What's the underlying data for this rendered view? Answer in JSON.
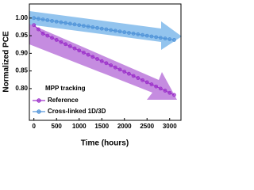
{
  "chart_data": {
    "type": "line",
    "x_label": "Time (hours)",
    "y_label": "Normalized PCE",
    "x": [
      0,
      100,
      200,
      300,
      400,
      500,
      600,
      700,
      800,
      900,
      1000,
      1100,
      1200,
      1300,
      1400,
      1500,
      1600,
      1700,
      1800,
      1900,
      2000,
      2100,
      2200,
      2300,
      2400,
      2500,
      2600,
      2700,
      2800,
      2900,
      3000,
      3100
    ],
    "series": [
      {
        "name": "Reference",
        "color": "#9b2fc9",
        "values": [
          0.98,
          0.968,
          0.956,
          0.95,
          0.944,
          0.938,
          0.932,
          0.926,
          0.92,
          0.914,
          0.908,
          0.902,
          0.896,
          0.89,
          0.884,
          0.878,
          0.872,
          0.866,
          0.86,
          0.854,
          0.848,
          0.842,
          0.836,
          0.83,
          0.824,
          0.818,
          0.812,
          0.806,
          0.8,
          0.794,
          0.788,
          0.782
        ]
      },
      {
        "name": "Cross-linked 1D/3D",
        "color": "#4f93d8",
        "values": [
          1.0,
          0.998,
          0.996,
          0.994,
          0.992,
          0.99,
          0.988,
          0.986,
          0.984,
          0.982,
          0.98,
          0.978,
          0.976,
          0.974,
          0.972,
          0.97,
          0.968,
          0.966,
          0.964,
          0.962,
          0.96,
          0.958,
          0.956,
          0.954,
          0.952,
          0.95,
          0.948,
          0.946,
          0.944,
          0.942,
          0.94,
          0.938
        ]
      }
    ],
    "legend_title": "MPP tracking",
    "xlim": [
      -100,
      3250
    ],
    "xticks": [
      0,
      500,
      1000,
      1500,
      2000,
      2500,
      3000
    ],
    "ylim": [
      0.71,
      1.04
    ],
    "yticks": [
      {
        "value": 0.8,
        "label": "0.80"
      },
      {
        "value": 0.85,
        "label": "0.85"
      },
      {
        "value": 0.9,
        "label": "0.90"
      },
      {
        "value": 0.95,
        "label": "0.95"
      },
      {
        "value": 1.0,
        "label": "1.00"
      }
    ]
  }
}
